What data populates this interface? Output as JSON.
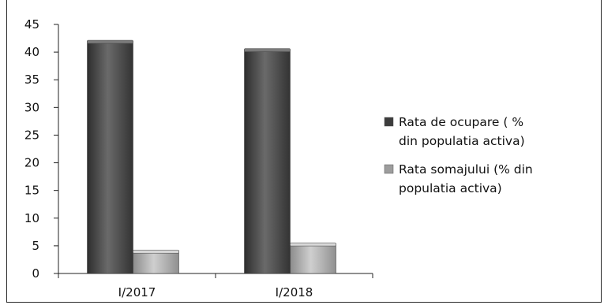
{
  "chart_data": {
    "type": "bar",
    "title": "",
    "xlabel": "",
    "ylabel": "",
    "categories": [
      "I/2017",
      "I/2018"
    ],
    "series": [
      {
        "name": "Rata de ocupare ( % din populatia activa)",
        "values": [
          42,
          40.5
        ],
        "color": "#4a4a4a"
      },
      {
        "name": "Rata somajului (% din populatia activa)",
        "values": [
          4.1,
          5.4
        ],
        "color": "#a9a9a9"
      }
    ],
    "legend_lines": [
      [
        "Rata de ocupare ( %",
        "din populatia activa)"
      ],
      [
        "Rata somajului (%  din",
        "populatia activa)"
      ]
    ],
    "ylim": [
      0,
      45
    ],
    "yticks": [
      0,
      5,
      10,
      15,
      20,
      25,
      30,
      35,
      40,
      45
    ],
    "grid": false,
    "legend_position": "right"
  }
}
